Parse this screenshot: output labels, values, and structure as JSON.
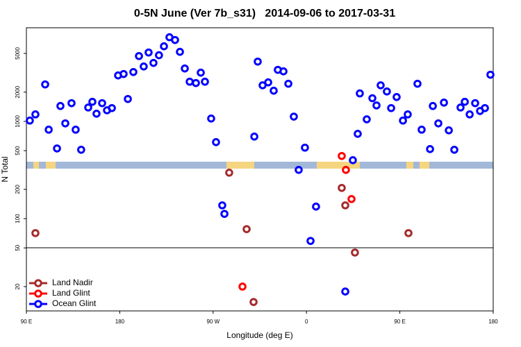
{
  "chart_data": {
    "type": "scatter",
    "title": "0-5N June (Ver 7b_s31)   2014-09-06 to 2017-03-31",
    "xlabel": "Longitude (deg E)",
    "ylabel": "N Total",
    "ylog": true,
    "legend": "lower left",
    "xlim": [
      90,
      540
    ],
    "ylim": [
      11.25,
      9180
    ],
    "xticks": [
      {
        "value": 90,
        "label": "90 E"
      },
      {
        "value": 180,
        "label": "180"
      },
      {
        "value": 270,
        "label": "90 W"
      },
      {
        "value": 360,
        "label": "0"
      },
      {
        "value": 450,
        "label": "90 E"
      },
      {
        "value": 540,
        "label": "180"
      }
    ],
    "yticks": [
      20,
      50,
      100,
      200,
      500,
      1000,
      2000,
      5000
    ],
    "series": [
      {
        "name": "Land Nadir",
        "color": "#a52a2a",
        "x": [
          98.7,
          285.5,
          302.3,
          309.0,
          394.0,
          397.4,
          406.7,
          458.3
        ],
        "values": [
          71,
          297,
          78,
          13.9,
          207,
          137,
          44.8,
          71
        ]
      },
      {
        "name": "Land Glint",
        "color": "#ff0000",
        "x": [
          298.3,
          394.0,
          398.0,
          403.4
        ],
        "values": [
          20,
          441,
          317,
          159
        ]
      },
      {
        "name": "Ocean Glint",
        "color": "#0000ff",
        "x": [
          93.3,
          98.7,
          108.1,
          111.5,
          119.5,
          122.8,
          127.5,
          133.5,
          137.5,
          142.8,
          149.6,
          153.6,
          157.6,
          163.0,
          167.7,
          172.4,
          178.4,
          183.7,
          187.8,
          193.1,
          198.5,
          203.1,
          207.8,
          212.5,
          217.8,
          222.6,
          227.9,
          233.3,
          238.0,
          242.7,
          247.4,
          253.4,
          258.1,
          262.1,
          268.1,
          272.8,
          278.8,
          280.9,
          309.7,
          313.0,
          317.7,
          323.1,
          328.4,
          332.4,
          337.8,
          342.5,
          347.8,
          352.5,
          358.5,
          363.9,
          369.2,
          397.4,
          404.7,
          409.4,
          411.4,
          418.1,
          423.5,
          427.5,
          431.5,
          437.5,
          441.6,
          446.9,
          453.0,
          457.6,
          467.0,
          471.0,
          479.1,
          481.8,
          487.1,
          492.5,
          497.2,
          502.5,
          508.5,
          512.6,
          517.3,
          522.6,
          527.3,
          532.0,
          537.3
        ],
        "values": [
          1020,
          1180,
          2400,
          822,
          527,
          1440,
          954,
          1540,
          822,
          511,
          1390,
          1590,
          1200,
          1540,
          1300,
          1370,
          2970,
          3070,
          1700,
          3220,
          4700,
          3670,
          5110,
          3990,
          4790,
          5920,
          7330,
          6870,
          5190,
          3500,
          2560,
          2480,
          3170,
          2560,
          1070,
          612,
          137,
          112,
          698,
          4120,
          2350,
          2520,
          2070,
          3390,
          3270,
          2440,
          1120,
          317,
          537,
          59,
          133,
          17.8,
          399,
          745,
          1940,
          1050,
          1730,
          1460,
          2350,
          2030,
          1370,
          1780,
          1020,
          1180,
          2440,
          822,
          519,
          1440,
          954,
          1560,
          809,
          511,
          1390,
          1590,
          1180,
          1540,
          1280,
          1370,
          3020
        ]
      }
    ]
  }
}
